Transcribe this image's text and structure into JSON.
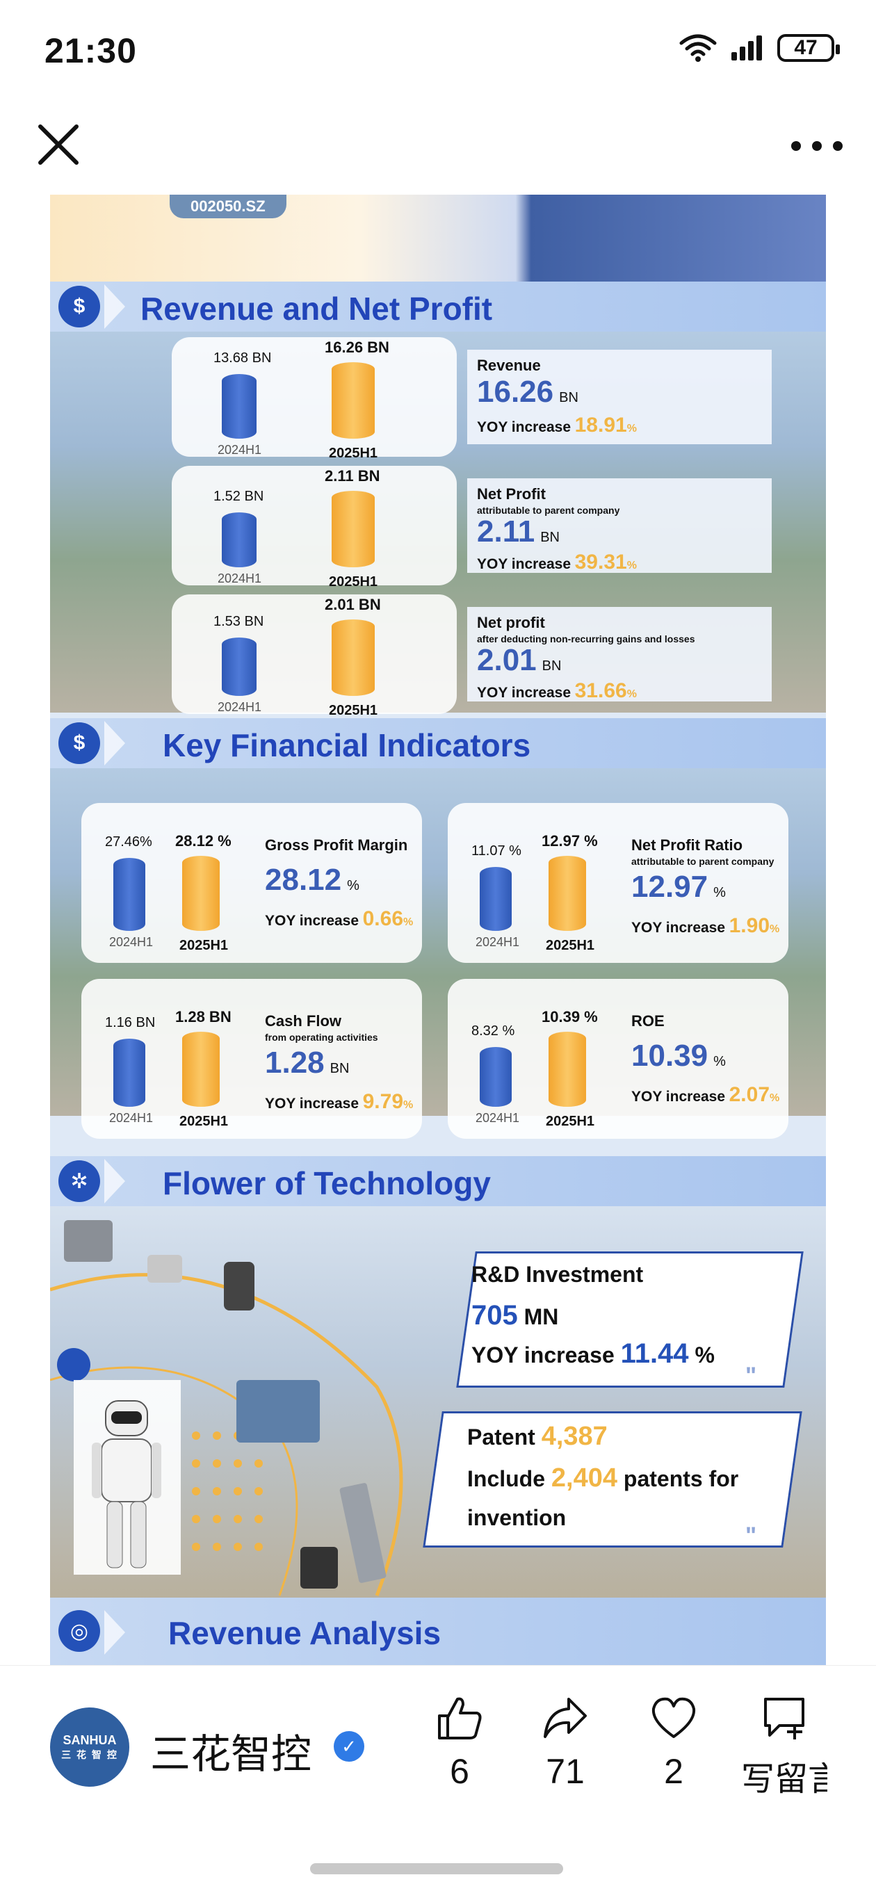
{
  "status_bar": {
    "time": "21:30",
    "battery": "47"
  },
  "poster": {
    "ticker": "002050.SZ",
    "sections": {
      "revenue": "Revenue and Net Profit",
      "indicators": "Key Financial Indicators",
      "technology": "Flower of Technology",
      "analysis": "Revenue Analysis"
    },
    "revenue_rows": [
      {
        "prev_label": "13.68 BN",
        "cur_label": "16.26 BN",
        "prev_period": "2024H1",
        "cur_period": "2025H1",
        "title": "Revenue",
        "subtitle": "",
        "value": "16.26",
        "unit": "BN",
        "yoy_label": "YOY increase",
        "yoy_value": "18.91",
        "yoy_unit": "%"
      },
      {
        "prev_label": "1.52 BN",
        "cur_label": "2.11 BN",
        "prev_period": "2024H1",
        "cur_period": "2025H1",
        "title": "Net Profit",
        "subtitle": "attributable to parent company",
        "value": "2.11",
        "unit": "BN",
        "yoy_label": "YOY increase",
        "yoy_value": "39.31",
        "yoy_unit": "%"
      },
      {
        "prev_label": "1.53 BN",
        "cur_label": "2.01 BN",
        "prev_period": "2024H1",
        "cur_period": "2025H1",
        "title": "Net profit",
        "subtitle": "after deducting non-recurring gains and losses",
        "value": "2.01",
        "unit": "BN",
        "yoy_label": "YOY increase",
        "yoy_value": "31.66",
        "yoy_unit": "%"
      }
    ],
    "indicators": [
      {
        "prev_label": "27.46%",
        "cur_label": "28.12 %",
        "prev_period": "2024H1",
        "cur_period": "2025H1",
        "title": "Gross Profit Margin",
        "subtitle": "",
        "value": "28.12",
        "unit": "%",
        "yoy_label": "YOY increase",
        "yoy_value": "0.66",
        "yoy_unit": "%"
      },
      {
        "prev_label": "11.07 %",
        "cur_label": "12.97 %",
        "prev_period": "2024H1",
        "cur_period": "2025H1",
        "title": "Net Profit Ratio",
        "subtitle": "attributable to parent company",
        "value": "12.97",
        "unit": "%",
        "yoy_label": "YOY increase",
        "yoy_value": "1.90",
        "yoy_unit": "%"
      },
      {
        "prev_label": "1.16 BN",
        "cur_label": "1.28 BN",
        "prev_period": "2024H1",
        "cur_period": "2025H1",
        "title": "Cash Flow",
        "subtitle": "from operating activities",
        "value": "1.28",
        "unit": "BN",
        "yoy_label": "YOY increase",
        "yoy_value": "9.79",
        "yoy_unit": "%"
      },
      {
        "prev_label": "8.32 %",
        "cur_label": "10.39 %",
        "prev_period": "2024H1",
        "cur_period": "2025H1",
        "title": "ROE",
        "subtitle": "",
        "value": "10.39",
        "unit": "%",
        "yoy_label": "YOY increase",
        "yoy_value": "2.07",
        "yoy_unit": "%"
      }
    ],
    "rd": {
      "title": "R&D Investment",
      "amount": "705",
      "amount_unit": "MN",
      "yoy_label": "YOY increase",
      "yoy_value": "11.44",
      "yoy_unit": "%"
    },
    "patent": {
      "label": "Patent",
      "count": "4,387",
      "include_label": "Include",
      "invention_count": "2,404",
      "suffix": "patents for",
      "suffix2": "invention"
    }
  },
  "account": {
    "logo_text": "SANHUA",
    "logo_sub": "三 花 智 控",
    "name": "三花智控"
  },
  "actions": [
    {
      "name": "like",
      "count": "6"
    },
    {
      "name": "share",
      "count": "71"
    },
    {
      "name": "favorite",
      "count": "2"
    },
    {
      "name": "comment",
      "count": "写留言"
    }
  ],
  "colors": {
    "brand_blue": "#2451b8",
    "accent_orange": "#f1b545",
    "value_blue": "#3a5db5"
  }
}
